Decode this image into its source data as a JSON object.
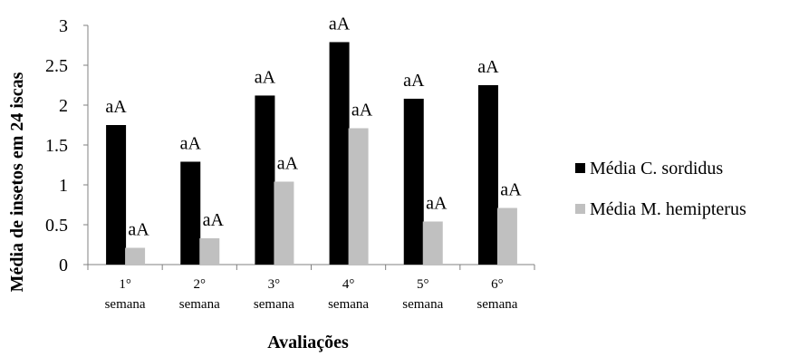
{
  "chart_data": {
    "type": "bar",
    "title": "",
    "xlabel": "Avaliações",
    "ylabel": "Média de insetos em 24 iscas",
    "ylim": [
      0,
      3
    ],
    "yticks": [
      "0",
      "0.5",
      "1",
      "1.5",
      "2",
      "2.5",
      "3"
    ],
    "categories": [
      [
        "1°",
        "semana"
      ],
      [
        "2°",
        "semana"
      ],
      [
        "3°",
        "semana"
      ],
      [
        "4°",
        "semana"
      ],
      [
        "5°",
        "semana"
      ],
      [
        "6°",
        "semana"
      ]
    ],
    "series": [
      {
        "name": "Média C. sordidus",
        "color": "#000000",
        "values": [
          1.75,
          1.29,
          2.12,
          2.79,
          2.08,
          2.25
        ],
        "labels": [
          "aA",
          "aA",
          "aA",
          "aA",
          "aA",
          "aA"
        ]
      },
      {
        "name": "Média M. hemipterus",
        "color": "#c0c0c0",
        "values": [
          0.21,
          0.33,
          1.04,
          1.71,
          0.54,
          0.71
        ],
        "labels": [
          "aA",
          "aA",
          "aA",
          "aA",
          "aA",
          "aA"
        ]
      }
    ],
    "grid": false,
    "legend_position": "right"
  }
}
